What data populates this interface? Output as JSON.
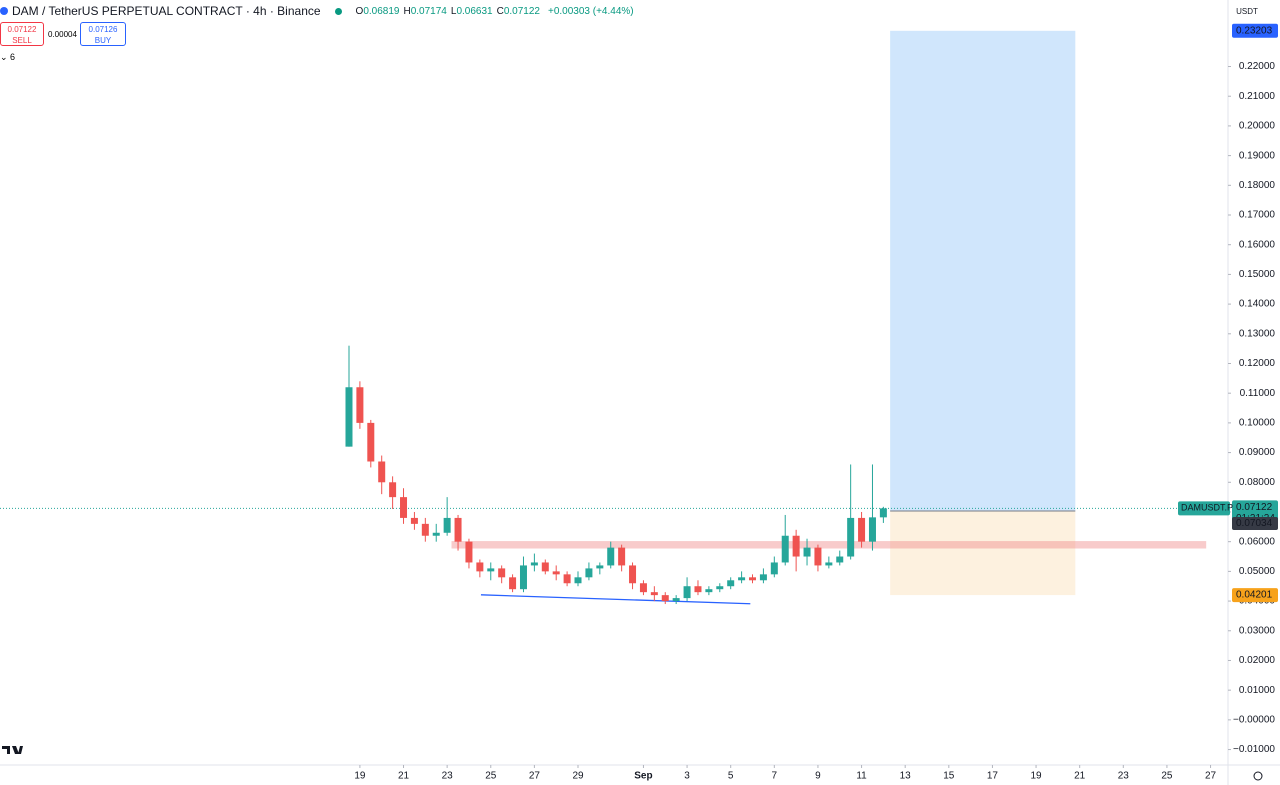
{
  "header": {
    "symbol": "DAM / TetherUS PERPETUAL CONTRACT · 4h · Binance",
    "ohlc": [
      {
        "label": "O",
        "value": 0.06819
      },
      {
        "label": "H",
        "value": 0.07174
      },
      {
        "label": "L",
        "value": 0.06631
      },
      {
        "label": "C",
        "value": 0.07122
      }
    ],
    "change": "+0.00303 (+4.44%)",
    "sell": {
      "price": 0.07122,
      "label": "SELL"
    },
    "spread": 4e-05,
    "buy": {
      "price": 0.07126,
      "label": "BUY"
    },
    "indicators": "6",
    "currency": "USDT"
  },
  "chart_data": {
    "type": "candlestick",
    "up_color": "#26a69a",
    "down_color": "#ef5350",
    "x": [
      18.5,
      19,
      19.5,
      20,
      20.5,
      21,
      21.5,
      22,
      22.5,
      23,
      23.5,
      24,
      24.5,
      25,
      25.5,
      26,
      26.5,
      27,
      27.5,
      28,
      28.5,
      29,
      29.5,
      30,
      30.5,
      31,
      31.5,
      32,
      32.5,
      33,
      33.5,
      34,
      34.5,
      35,
      35.5,
      36,
      36.5,
      37,
      37.5,
      38,
      38.5,
      39,
      39.5,
      40,
      40.5,
      41,
      41.5,
      42,
      42.5,
      43
    ],
    "open": [
      0.092,
      0.112,
      0.1,
      0.087,
      0.08,
      0.075,
      0.068,
      0.066,
      0.062,
      0.063,
      0.068,
      0.06,
      0.053,
      0.05,
      0.051,
      0.048,
      0.044,
      0.052,
      0.053,
      0.05,
      0.049,
      0.046,
      0.048,
      0.051,
      0.052,
      0.058,
      0.052,
      0.046,
      0.043,
      0.042,
      0.04,
      0.041,
      0.045,
      0.043,
      0.044,
      0.045,
      0.047,
      0.048,
      0.047,
      0.049,
      0.053,
      0.062,
      0.055,
      0.058,
      0.052,
      0.053,
      0.055,
      0.068,
      0.06,
      0.06819
    ],
    "high": [
      0.126,
      0.114,
      0.101,
      0.089,
      0.082,
      0.078,
      0.07,
      0.068,
      0.066,
      0.075,
      0.069,
      0.061,
      0.054,
      0.053,
      0.052,
      0.049,
      0.055,
      0.056,
      0.054,
      0.052,
      0.05,
      0.05,
      0.053,
      0.053,
      0.06,
      0.059,
      0.053,
      0.047,
      0.045,
      0.043,
      0.042,
      0.048,
      0.047,
      0.045,
      0.046,
      0.048,
      0.05,
      0.049,
      0.051,
      0.055,
      0.069,
      0.064,
      0.061,
      0.059,
      0.055,
      0.057,
      0.086,
      0.07,
      0.086,
      0.07174
    ],
    "low": [
      0.092,
      0.098,
      0.085,
      0.076,
      0.071,
      0.066,
      0.064,
      0.06,
      0.06,
      0.062,
      0.057,
      0.051,
      0.048,
      0.047,
      0.046,
      0.043,
      0.043,
      0.05,
      0.049,
      0.047,
      0.045,
      0.045,
      0.047,
      0.049,
      0.051,
      0.05,
      0.044,
      0.042,
      0.04,
      0.039,
      0.039,
      0.04,
      0.042,
      0.042,
      0.043,
      0.044,
      0.046,
      0.046,
      0.046,
      0.048,
      0.052,
      0.05,
      0.052,
      0.05,
      0.051,
      0.052,
      0.054,
      0.058,
      0.057,
      0.06631
    ],
    "close": [
      0.112,
      0.1,
      0.087,
      0.08,
      0.075,
      0.068,
      0.066,
      0.062,
      0.063,
      0.068,
      0.06,
      0.053,
      0.05,
      0.051,
      0.048,
      0.044,
      0.052,
      0.053,
      0.05,
      0.049,
      0.046,
      0.048,
      0.051,
      0.052,
      0.058,
      0.052,
      0.046,
      0.043,
      0.042,
      0.04,
      0.041,
      0.045,
      0.043,
      0.044,
      0.045,
      0.047,
      0.048,
      0.047,
      0.049,
      0.053,
      0.062,
      0.055,
      0.058,
      0.052,
      0.053,
      0.055,
      0.068,
      0.06,
      0.06819,
      0.07122
    ],
    "xlim": [
      2.5,
      58.8
    ],
    "xticks": [
      {
        "value": 19,
        "label": "19"
      },
      {
        "value": 21,
        "label": "21"
      },
      {
        "value": 23,
        "label": "23"
      },
      {
        "value": 25,
        "label": "25"
      },
      {
        "value": 27,
        "label": "27"
      },
      {
        "value": 29,
        "label": "29"
      },
      {
        "value": 32,
        "label": "Sep"
      },
      {
        "value": 34,
        "label": "3"
      },
      {
        "value": 36,
        "label": "5"
      },
      {
        "value": 38,
        "label": "7"
      },
      {
        "value": 40,
        "label": "9"
      },
      {
        "value": 42,
        "label": "11"
      },
      {
        "value": 44,
        "label": "13"
      },
      {
        "value": 46,
        "label": "15"
      },
      {
        "value": 48,
        "label": "17"
      },
      {
        "value": 50,
        "label": "19"
      },
      {
        "value": 52,
        "label": "21"
      },
      {
        "value": 54,
        "label": "23"
      },
      {
        "value": 56,
        "label": "25"
      },
      {
        "value": 58,
        "label": "27"
      }
    ],
    "ylim": [
      -0.0152,
      0.2424
    ],
    "yticks": [
      {
        "value": 0.22,
        "label": "0.22000"
      },
      {
        "value": 0.21,
        "label": "0.21000"
      },
      {
        "value": 0.2,
        "label": "0.20000"
      },
      {
        "value": 0.19,
        "label": "0.19000"
      },
      {
        "value": 0.18,
        "label": "0.18000"
      },
      {
        "value": 0.17,
        "label": "0.17000"
      },
      {
        "value": 0.16,
        "label": "0.16000"
      },
      {
        "value": 0.15,
        "label": "0.15000"
      },
      {
        "value": 0.14,
        "label": "0.14000"
      },
      {
        "value": 0.13,
        "label": "0.13000"
      },
      {
        "value": 0.12,
        "label": "0.12000"
      },
      {
        "value": 0.11,
        "label": "0.11000"
      },
      {
        "value": 0.1,
        "label": "0.10000"
      },
      {
        "value": 0.09,
        "label": "0.09000"
      },
      {
        "value": 0.08,
        "label": "0.08000"
      },
      {
        "value": 0.07,
        "label": "0.07000"
      },
      {
        "value": 0.06,
        "label": "0.06000"
      },
      {
        "value": 0.05,
        "label": "0.05000"
      },
      {
        "value": 0.04,
        "label": "0.04000"
      },
      {
        "value": 0.03,
        "label": "0.03000"
      },
      {
        "value": 0.02,
        "label": "0.02000"
      },
      {
        "value": 0.01,
        "label": "0.01000"
      },
      {
        "value": 0,
        "label": "−0.00000"
      },
      {
        "value": -0.01,
        "label": "−0.01000"
      }
    ],
    "last_price": {
      "symbol": "DAMUSDT.P",
      "value": 0.07122,
      "countdown": "01:21:24"
    },
    "position": {
      "x": [
        43.31,
        51.8
      ],
      "target": 0.23203,
      "entry": 0.07034,
      "stop": 0.04201
    },
    "zone": {
      "x": [
        23.2,
        57.8
      ],
      "y": [
        0.0577,
        0.0602
      ]
    },
    "trendline": {
      "x": [
        24.55,
        36.9
      ],
      "y": [
        0.0421,
        0.0391
      ]
    }
  }
}
